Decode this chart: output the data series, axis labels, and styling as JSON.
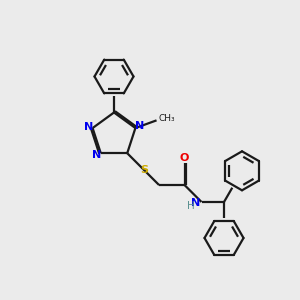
{
  "background_color": "#ebebeb",
  "bond_color": "#1a1a1a",
  "atom_colors": {
    "N": "#0000ee",
    "S": "#ccaa00",
    "O": "#ee0000",
    "H": "#5a9090",
    "C": "#1a1a1a"
  },
  "lw": 1.6,
  "fs": 8.0
}
